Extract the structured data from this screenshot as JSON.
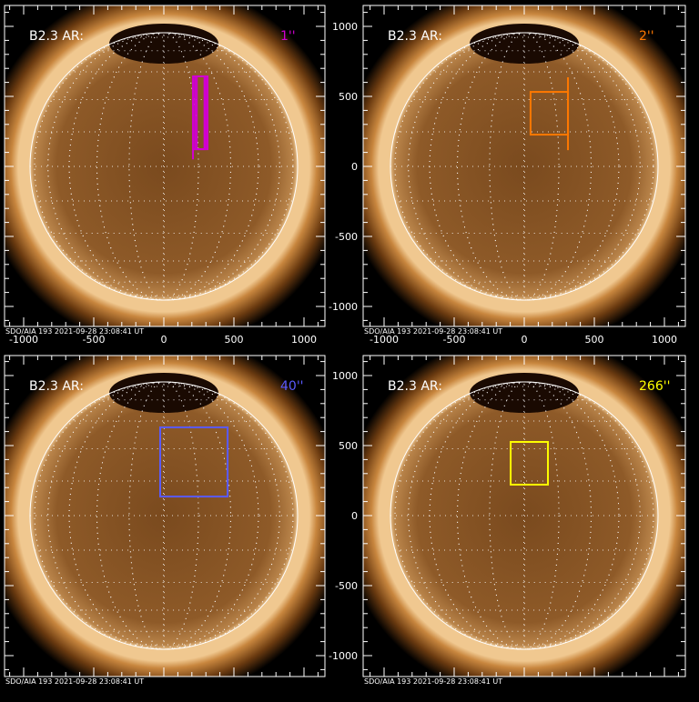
{
  "panels": [
    {
      "title": "B2.3 AR:",
      "fov_label": "1''",
      "color": "#d000d0",
      "caption": "SDO/AIA 193   2021-09-28 23:08:41 UT",
      "boxes": [
        {
          "x0": 208,
          "x1": 312,
          "y0": 123,
          "y1": 643
        },
        {
          "x0": 222,
          "x1": 300,
          "y0": 123,
          "y1": 643
        },
        {
          "x0": 235,
          "x1": 290,
          "y0": 123,
          "y1": 643
        }
      ],
      "line": {
        "x": 208,
        "y0": 50,
        "y1": 643
      }
    },
    {
      "title": "B2.3 AR:",
      "fov_label": "2''",
      "color": "#ff7800",
      "caption": "SDO/AIA 193   2021-09-28 23:08:41 UT",
      "boxes": [
        {
          "x0": 45,
          "x1": 312,
          "y0": 227,
          "y1": 532
        }
      ],
      "line": {
        "x": 312,
        "y0": 116,
        "y1": 636
      }
    },
    {
      "title": "B2.3 AR:",
      "fov_label": "40''",
      "color": "#5a5aff",
      "caption": "SDO/AIA 193   2021-09-28 23:08:41 UT",
      "boxes": [
        {
          "x0": -26,
          "x1": 455,
          "y0": 136,
          "y1": 630
        }
      ]
    },
    {
      "title": "B2.3 AR:",
      "fov_label": "266''",
      "color": "#ffff00",
      "caption": "SDO/AIA 193   2021-09-28 23:08:41 UT",
      "boxes": [
        {
          "x0": -97,
          "x1": 169,
          "y0": 221,
          "y1": 526
        }
      ]
    }
  ],
  "axes": {
    "x_ticks": [
      "-1000",
      "-500",
      "0",
      "500",
      "1000"
    ],
    "y_ticks": [
      "1000",
      "500",
      "0",
      "-500",
      "-1000"
    ],
    "x_range": [
      -1150,
      1150
    ],
    "y_range": [
      -1150,
      1150
    ]
  },
  "colors": {
    "frame": "#ffffff",
    "limb": "#ffffff"
  }
}
